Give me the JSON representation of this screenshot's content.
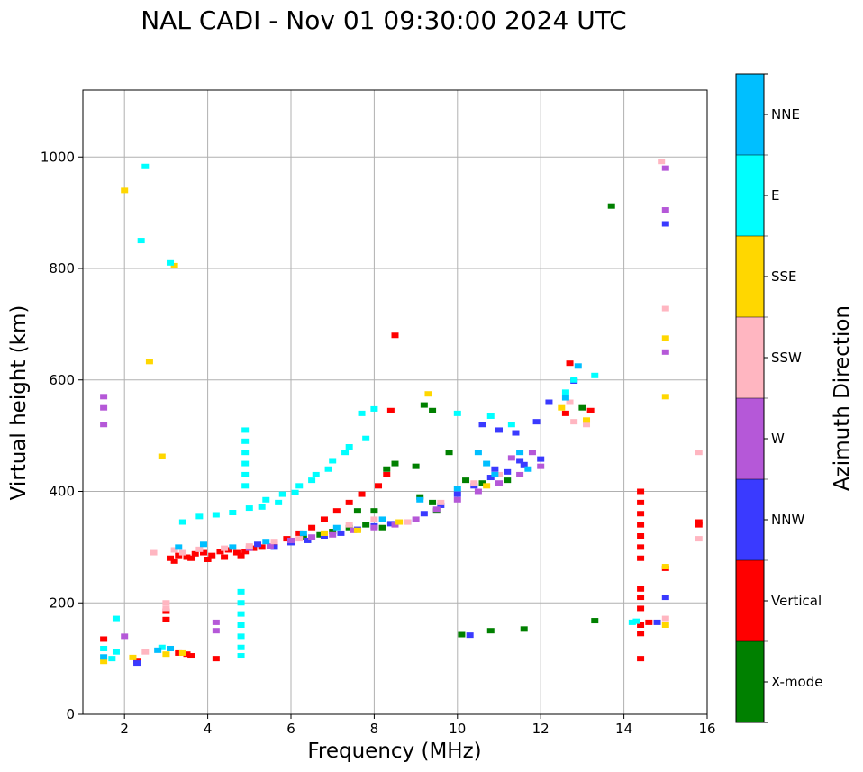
{
  "chart_data": {
    "type": "scatter",
    "title": "NAL CADI - Nov 01 09:30:00 2024 UTC",
    "xlabel": "Frequency (MHz)",
    "ylabel": "Virtual height (km)",
    "xlim": [
      1,
      16
    ],
    "ylim": [
      0,
      1120
    ],
    "xticks": [
      "2",
      "4",
      "6",
      "8",
      "10",
      "12",
      "14",
      "16"
    ],
    "yticks": [
      "0",
      "200",
      "400",
      "600",
      "800",
      "1000"
    ],
    "xtick_values": [
      2,
      4,
      6,
      8,
      10,
      12,
      14,
      16
    ],
    "ytick_values": [
      0,
      200,
      400,
      600,
      800,
      1000
    ],
    "grid": true,
    "colorbar_label": "Azimuth Direction",
    "categories": [
      "X-mode",
      "Vertical",
      "NNW",
      "W",
      "SSW",
      "SSE",
      "E",
      "NNE"
    ],
    "colors": {
      "X-mode": "#008000",
      "Vertical": "#ff0000",
      "NNW": "#3a3aff",
      "W": "#b558d8",
      "SSW": "#ffb6c1",
      "SSE": "#ffd700",
      "E": "#00ffff",
      "NNE": "#00bfff"
    },
    "series": [
      {
        "name": "Vertical",
        "points": [
          [
            3.1,
            280
          ],
          [
            3.3,
            285
          ],
          [
            3.5,
            282
          ],
          [
            3.7,
            288
          ],
          [
            3.9,
            290
          ],
          [
            4.1,
            285
          ],
          [
            4.3,
            292
          ],
          [
            4.5,
            295
          ],
          [
            4.7,
            290
          ],
          [
            4.9,
            292
          ],
          [
            5.1,
            298
          ],
          [
            5.3,
            300
          ],
          [
            5.6,
            305
          ],
          [
            5.9,
            315
          ],
          [
            6.2,
            325
          ],
          [
            6.5,
            335
          ],
          [
            6.8,
            350
          ],
          [
            7.1,
            365
          ],
          [
            7.4,
            380
          ],
          [
            7.7,
            395
          ],
          [
            8.1,
            410
          ],
          [
            8.3,
            430
          ],
          [
            8.4,
            545
          ],
          [
            3.2,
            275
          ],
          [
            3.6,
            280
          ],
          [
            4.0,
            278
          ],
          [
            4.4,
            282
          ],
          [
            4.8,
            285
          ],
          [
            3.0,
            185
          ],
          [
            3.0,
            170
          ],
          [
            2.3,
            95
          ],
          [
            3.3,
            110
          ],
          [
            3.5,
            108
          ],
          [
            3.6,
            105
          ],
          [
            1.5,
            135
          ],
          [
            4.2,
            100
          ],
          [
            8.5,
            680
          ],
          [
            12.7,
            630
          ],
          [
            12.6,
            540
          ],
          [
            13.2,
            545
          ],
          [
            14.4,
            400
          ],
          [
            14.4,
            380
          ],
          [
            14.4,
            360
          ],
          [
            14.4,
            340
          ],
          [
            14.4,
            320
          ],
          [
            14.4,
            300
          ],
          [
            14.4,
            280
          ],
          [
            14.4,
            225
          ],
          [
            14.4,
            210
          ],
          [
            14.4,
            190
          ],
          [
            14.4,
            160
          ],
          [
            14.4,
            145
          ],
          [
            14.4,
            100
          ],
          [
            14.6,
            165
          ],
          [
            15.0,
            262
          ],
          [
            15.8,
            345
          ],
          [
            15.8,
            340
          ]
        ]
      },
      {
        "name": "X-mode",
        "points": [
          [
            6.3,
            318
          ],
          [
            6.7,
            322
          ],
          [
            7.0,
            328
          ],
          [
            7.4,
            335
          ],
          [
            7.8,
            340
          ],
          [
            8.2,
            335
          ],
          [
            8.5,
            450
          ],
          [
            8.3,
            440
          ],
          [
            9.0,
            445
          ],
          [
            9.4,
            380
          ],
          [
            9.5,
            365
          ],
          [
            9.2,
            555
          ],
          [
            9.4,
            545
          ],
          [
            9.8,
            470
          ],
          [
            10.2,
            420
          ],
          [
            10.6,
            415
          ],
          [
            11.2,
            420
          ],
          [
            13.7,
            912
          ],
          [
            13.0,
            550
          ],
          [
            13.3,
            168
          ],
          [
            10.1,
            143
          ],
          [
            10.8,
            150
          ],
          [
            11.6,
            153
          ],
          [
            7.6,
            365
          ],
          [
            8.0,
            365
          ],
          [
            9.1,
            390
          ]
        ]
      },
      {
        "name": "NNW",
        "points": [
          [
            5.2,
            305
          ],
          [
            5.6,
            300
          ],
          [
            6.0,
            308
          ],
          [
            6.4,
            312
          ],
          [
            6.8,
            320
          ],
          [
            7.2,
            325
          ],
          [
            7.6,
            332
          ],
          [
            8.0,
            338
          ],
          [
            8.4,
            342
          ],
          [
            8.8,
            345
          ],
          [
            9.2,
            360
          ],
          [
            9.6,
            375
          ],
          [
            10.0,
            395
          ],
          [
            10.4,
            410
          ],
          [
            10.8,
            425
          ],
          [
            11.2,
            435
          ],
          [
            11.6,
            448
          ],
          [
            12.0,
            458
          ],
          [
            10.6,
            520
          ],
          [
            11.0,
            510
          ],
          [
            11.4,
            505
          ],
          [
            11.9,
            525
          ],
          [
            10.9,
            440
          ],
          [
            11.5,
            455
          ],
          [
            2.3,
            92
          ],
          [
            15.0,
            880
          ],
          [
            15.0,
            210
          ],
          [
            14.8,
            165
          ],
          [
            12.2,
            560
          ],
          [
            12.8,
            598
          ],
          [
            10.3,
            142
          ]
        ]
      },
      {
        "name": "W",
        "points": [
          [
            5.0,
            298
          ],
          [
            5.5,
            302
          ],
          [
            6.0,
            312
          ],
          [
            6.5,
            318
          ],
          [
            7.0,
            322
          ],
          [
            7.5,
            330
          ],
          [
            8.0,
            335
          ],
          [
            8.5,
            340
          ],
          [
            9.0,
            350
          ],
          [
            9.5,
            368
          ],
          [
            10.0,
            385
          ],
          [
            10.5,
            400
          ],
          [
            11.0,
            415
          ],
          [
            11.5,
            430
          ],
          [
            12.0,
            445
          ],
          [
            11.8,
            470
          ],
          [
            11.3,
            460
          ],
          [
            1.5,
            550
          ],
          [
            1.5,
            520
          ],
          [
            1.5,
            570
          ],
          [
            4.2,
            165
          ],
          [
            4.2,
            150
          ],
          [
            15.0,
            980
          ],
          [
            15.0,
            905
          ],
          [
            15.0,
            650
          ],
          [
            2.0,
            140
          ]
        ]
      },
      {
        "name": "SSW",
        "points": [
          [
            3.2,
            295
          ],
          [
            3.4,
            290
          ],
          [
            3.8,
            296
          ],
          [
            4.4,
            298
          ],
          [
            5.0,
            302
          ],
          [
            5.6,
            310
          ],
          [
            6.2,
            315
          ],
          [
            6.8,
            325
          ],
          [
            7.4,
            340
          ],
          [
            8.0,
            350
          ],
          [
            8.8,
            345
          ],
          [
            9.6,
            380
          ],
          [
            10.4,
            415
          ],
          [
            11.0,
            430
          ],
          [
            2.7,
            290
          ],
          [
            3.0,
            200
          ],
          [
            3.0,
            190
          ],
          [
            2.5,
            112
          ],
          [
            14.9,
            992
          ],
          [
            15.0,
            728
          ],
          [
            15.8,
            470
          ],
          [
            15.8,
            315
          ],
          [
            15.0,
            172
          ],
          [
            12.7,
            560
          ],
          [
            12.8,
            525
          ],
          [
            13.1,
            520
          ]
        ]
      },
      {
        "name": "SSE",
        "points": [
          [
            3.0,
            108
          ],
          [
            2.2,
            102
          ],
          [
            1.5,
            95
          ],
          [
            3.4,
            110
          ],
          [
            6.8,
            325
          ],
          [
            7.6,
            330
          ],
          [
            2.9,
            463
          ],
          [
            2.6,
            633
          ],
          [
            3.2,
            805
          ],
          [
            2.0,
            940
          ],
          [
            9.3,
            575
          ],
          [
            10.7,
            410
          ],
          [
            12.5,
            550
          ],
          [
            13.1,
            528
          ],
          [
            15.0,
            675
          ],
          [
            15.0,
            570
          ],
          [
            15.0,
            265
          ],
          [
            15.0,
            160
          ],
          [
            8.6,
            345
          ]
        ]
      },
      {
        "name": "E",
        "points": [
          [
            3.4,
            345
          ],
          [
            3.8,
            355
          ],
          [
            4.2,
            358
          ],
          [
            4.6,
            362
          ],
          [
            5.0,
            370
          ],
          [
            5.4,
            385
          ],
          [
            5.8,
            395
          ],
          [
            6.2,
            410
          ],
          [
            6.6,
            430
          ],
          [
            7.0,
            455
          ],
          [
            7.4,
            480
          ],
          [
            7.8,
            495
          ],
          [
            4.9,
            510
          ],
          [
            4.9,
            490
          ],
          [
            4.9,
            470
          ],
          [
            4.9,
            450
          ],
          [
            4.9,
            430
          ],
          [
            4.9,
            410
          ],
          [
            4.8,
            220
          ],
          [
            4.8,
            200
          ],
          [
            4.8,
            180
          ],
          [
            4.8,
            160
          ],
          [
            4.8,
            140
          ],
          [
            4.8,
            120
          ],
          [
            4.8,
            105
          ],
          [
            5.3,
            372
          ],
          [
            5.7,
            380
          ],
          [
            6.1,
            398
          ],
          [
            6.5,
            420
          ],
          [
            6.9,
            440
          ],
          [
            7.3,
            470
          ],
          [
            7.7,
            540
          ],
          [
            8.0,
            548
          ],
          [
            10.0,
            540
          ],
          [
            10.8,
            535
          ],
          [
            11.3,
            520
          ],
          [
            12.8,
            600
          ],
          [
            12.6,
            578
          ],
          [
            13.3,
            608
          ],
          [
            14.2,
            165
          ],
          [
            14.3,
            167
          ],
          [
            2.5,
            983
          ],
          [
            2.4,
            850
          ],
          [
            3.1,
            810
          ],
          [
            1.5,
            118
          ],
          [
            1.8,
            112
          ],
          [
            1.7,
            100
          ],
          [
            2.9,
            120
          ],
          [
            1.8,
            172
          ]
        ]
      },
      {
        "name": "NNE",
        "points": [
          [
            3.3,
            300
          ],
          [
            3.9,
            305
          ],
          [
            4.6,
            300
          ],
          [
            5.4,
            310
          ],
          [
            6.3,
            325
          ],
          [
            7.1,
            335
          ],
          [
            8.2,
            350
          ],
          [
            9.1,
            385
          ],
          [
            10.0,
            405
          ],
          [
            10.9,
            430
          ],
          [
            11.7,
            440
          ],
          [
            12.9,
            625
          ],
          [
            12.6,
            568
          ],
          [
            3.1,
            118
          ],
          [
            2.8,
            115
          ],
          [
            1.5,
            103
          ],
          [
            10.5,
            470
          ],
          [
            11.5,
            470
          ],
          [
            10.7,
            450
          ]
        ]
      }
    ]
  }
}
